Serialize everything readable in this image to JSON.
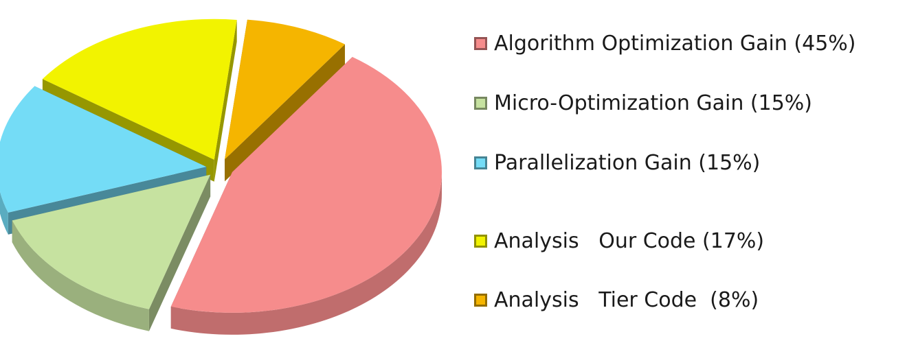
{
  "chart_data": {
    "type": "pie",
    "title": "",
    "slices": [
      {
        "label": "Algorithm Optimization Gain (45%)",
        "value": 45,
        "color": "#f68c8c"
      },
      {
        "label": "Micro-Optimization Gain (15%)",
        "value": 15,
        "color": "#c6e2a0"
      },
      {
        "label": "Parallelization Gain (15%)",
        "value": 15,
        "color": "#74dcf6"
      },
      {
        "label": "Analysis   Our Code (17%)",
        "value": 17,
        "color": "#f2f300"
      },
      {
        "label": "Analysis   Tier Code  (8%)",
        "value": 8,
        "color": "#f5b500"
      }
    ],
    "legend_position": "right",
    "style": "3d-exploded"
  }
}
